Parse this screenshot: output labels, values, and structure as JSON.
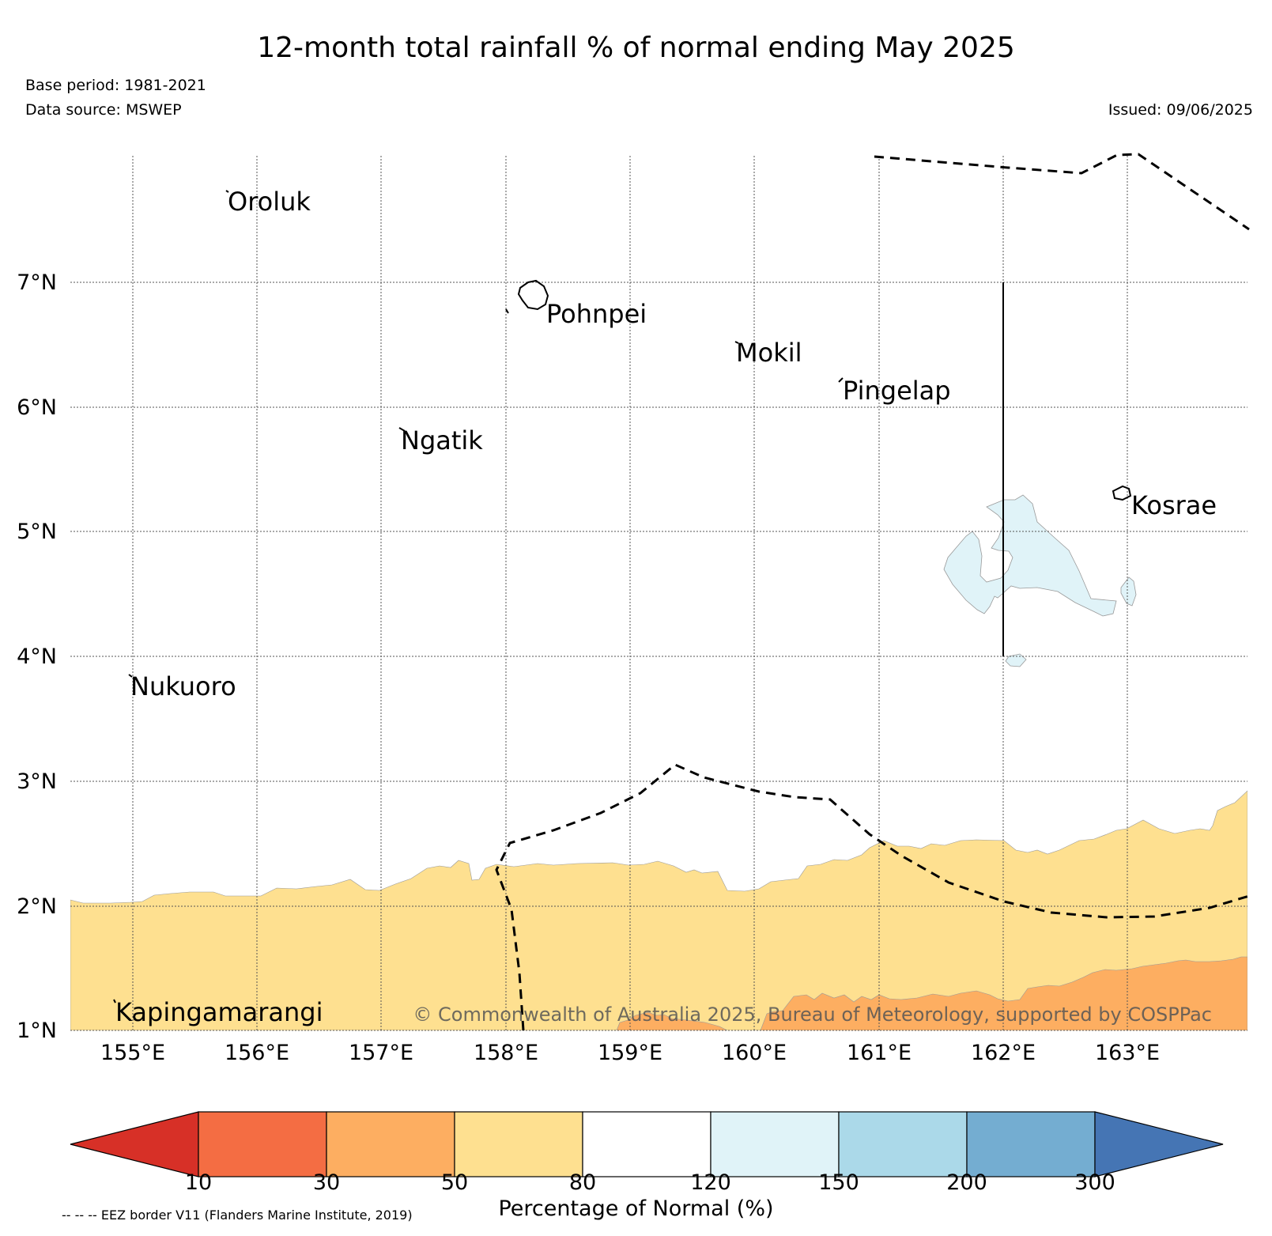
{
  "title": "12-month total rainfall % of normal ending May 2025",
  "base_period": "Base period: 1981-2021",
  "data_source": "Data source: MSWEP",
  "issued": "Issued: 09/06/2025",
  "copyright": "© Commonwealth of Australia 2025, Bureau of Meteorology, supported by COSPPac",
  "eez_note": "-- -- -- EEZ border V11 (Flanders Marine Institute, 2019)",
  "map": {
    "lon_range": [
      154.5,
      164.0
    ],
    "lat_range": [
      1.0,
      8.0
    ],
    "lat_ticks": [
      "1°N",
      "2°N",
      "3°N",
      "4°N",
      "5°N",
      "6°N",
      "7°N"
    ],
    "lon_ticks": [
      "155°E",
      "156°E",
      "157°E",
      "158°E",
      "159°E",
      "160°E",
      "161°E",
      "162°E",
      "163°E"
    ],
    "places": [
      {
        "name": "Oroluk",
        "lon": 155.75,
        "lat": 7.6
      },
      {
        "name": "Pohnpei",
        "lon": 158.32,
        "lat": 6.85
      },
      {
        "name": "Mokil",
        "lon": 159.87,
        "lat": 6.55
      },
      {
        "name": "Pingelap",
        "lon": 160.7,
        "lat": 6.2
      },
      {
        "name": "Ngatik",
        "lon": 157.15,
        "lat": 5.8
      },
      {
        "name": "Kosrae",
        "lon": 162.98,
        "lat": 5.3
      },
      {
        "name": "Nukuoro",
        "lon": 154.97,
        "lat": 3.85
      },
      {
        "name": "Kapingamarangi",
        "lon": 154.85,
        "lat": 1.23
      }
    ]
  },
  "colorbar": {
    "label": "Percentage of Normal (%)",
    "ticks": [
      "10",
      "30",
      "50",
      "80",
      "120",
      "150",
      "200",
      "300"
    ],
    "colors": [
      "#d73027",
      "#f46d43",
      "#fdae61",
      "#fee090",
      "#ffffff",
      "#e0f3f8",
      "#abd9e9",
      "#74add1",
      "#4575b4"
    ]
  }
}
